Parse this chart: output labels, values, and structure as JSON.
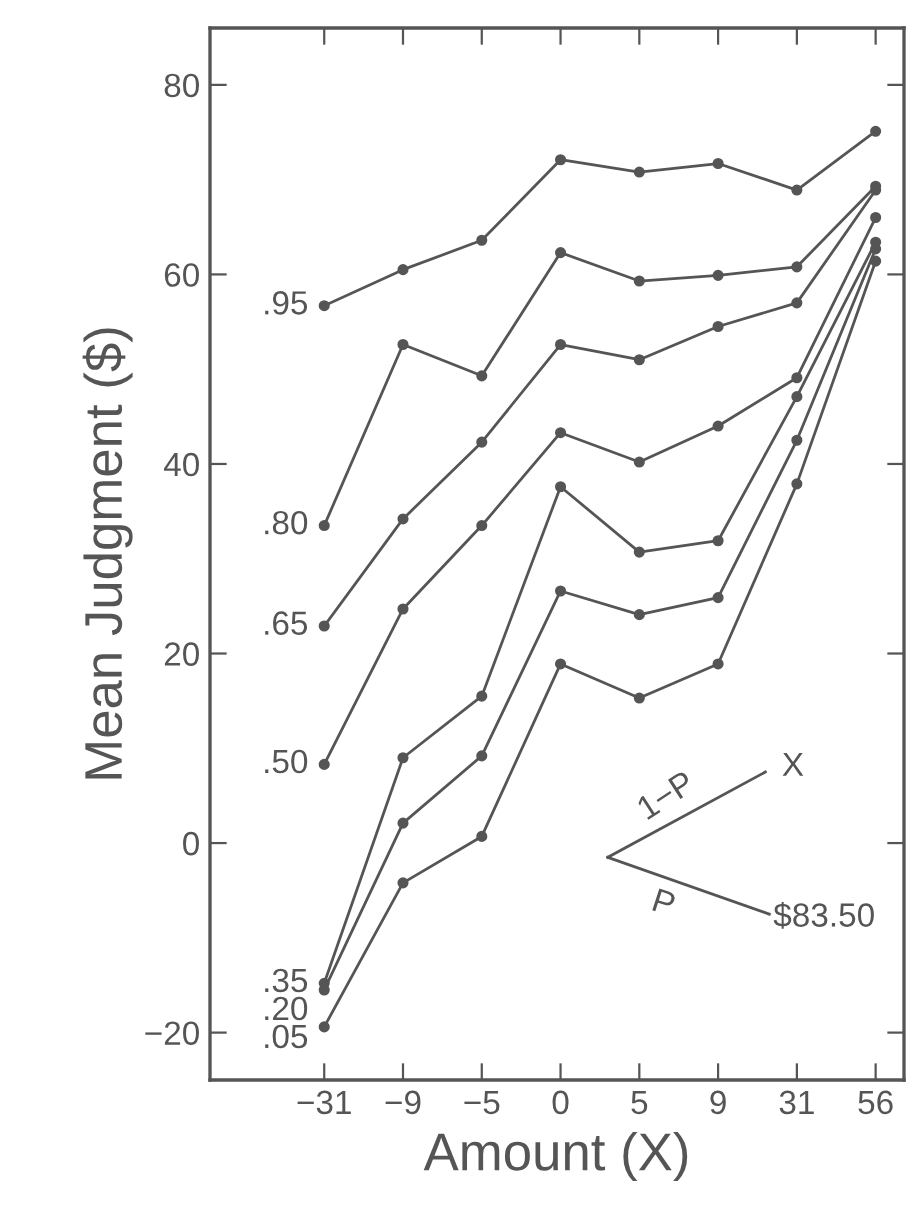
{
  "chart_data": {
    "type": "line",
    "xlabel": "Amount (X)",
    "ylabel": "Mean Judgment ($)",
    "categories": [
      "−31",
      "−9",
      "−5",
      "0",
      "5",
      "9",
      "31",
      "56"
    ],
    "ylim": [
      -25,
      86
    ],
    "yticks": [
      {
        "value": -20,
        "label": "−20"
      },
      0,
      20,
      40,
      60,
      80
    ],
    "grid": false,
    "legend": false,
    "marker": "circle",
    "line_style": "solid",
    "series": [
      {
        "name": ".95",
        "color": "#555555",
        "values": [
          56.7,
          60.5,
          63.6,
          72.1,
          70.8,
          71.7,
          68.9,
          75.1
        ]
      },
      {
        "name": ".80",
        "color": "#555555",
        "values": [
          33.5,
          52.6,
          49.3,
          62.3,
          59.3,
          59.9,
          60.8,
          69.3
        ]
      },
      {
        "name": ".65",
        "color": "#555555",
        "values": [
          22.9,
          34.2,
          42.3,
          52.6,
          51.0,
          54.5,
          57.0,
          68.9
        ]
      },
      {
        "name": ".50",
        "color": "#555555",
        "values": [
          8.3,
          24.7,
          33.5,
          43.3,
          40.2,
          44.0,
          49.1,
          66.0
        ]
      },
      {
        "name": ".35",
        "color": "#555555",
        "values": [
          -14.8,
          9.0,
          15.5,
          37.6,
          30.7,
          31.9,
          47.1,
          63.4
        ]
      },
      {
        "name": ".20",
        "color": "#555555",
        "values": [
          -15.5,
          2.1,
          9.2,
          26.6,
          24.1,
          25.9,
          42.5,
          62.7
        ]
      },
      {
        "name": ".05",
        "color": "#555555",
        "values": [
          -19.4,
          -4.2,
          0.7,
          18.9,
          15.3,
          18.9,
          37.9,
          61.4
        ]
      }
    ],
    "annotations": [
      "1−P",
      "X",
      "P",
      "$83.50"
    ]
  }
}
